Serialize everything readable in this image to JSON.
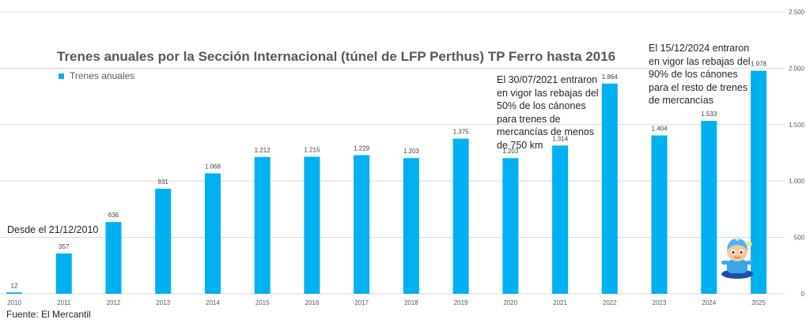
{
  "chart_data": {
    "type": "bar",
    "title": "Trenes anuales por la Sección Internacional (túnel de LFP Perthus) TP Ferro hasta 2016",
    "categories": [
      "2010",
      "2011",
      "2012",
      "2013",
      "2014",
      "2015",
      "2016",
      "2017",
      "2018",
      "2019",
      "2020",
      "2021",
      "2022",
      "2023",
      "2024",
      "2025"
    ],
    "series": [
      {
        "name": "Trenes anuales",
        "values": [
          12,
          357,
          636,
          931,
          1068,
          1212,
          1215,
          1229,
          1203,
          1375,
          1203,
          1314,
          1864,
          1404,
          1533,
          1978
        ],
        "value_labels": [
          "12",
          "357",
          "636",
          "931",
          "1.068",
          "1.212",
          "1.215",
          "1.229",
          "1.203",
          "1.375",
          "1.203",
          "1.314",
          "1.864",
          "1.404",
          "1.533",
          "1.978"
        ]
      }
    ],
    "ylim": [
      0,
      2500
    ],
    "y_ticks": [
      0,
      500,
      1000,
      1500,
      2000,
      2500
    ],
    "y_tick_labels": [
      "0",
      "500",
      "1.000",
      "1.500",
      "2.000",
      "2.500"
    ],
    "y_axis_side": "right",
    "grid": true,
    "legend": "top-left",
    "bar_color": "#00b0f0",
    "annotations": [
      {
        "category": "2010",
        "text": "Desde el 21/12/2010"
      },
      {
        "category": "2021",
        "text": "El 30/07/2021 entraron en vigor las rebajas del 50% de los cánones para trenes de mercancías de menos de 750 km"
      },
      {
        "category": "2024",
        "text": "El 15/12/2024 entraron en vigor las rebajas del 90% de los cánones para el resto de trenes de mercancías"
      }
    ]
  },
  "source": "Fuente: El Mercantil"
}
